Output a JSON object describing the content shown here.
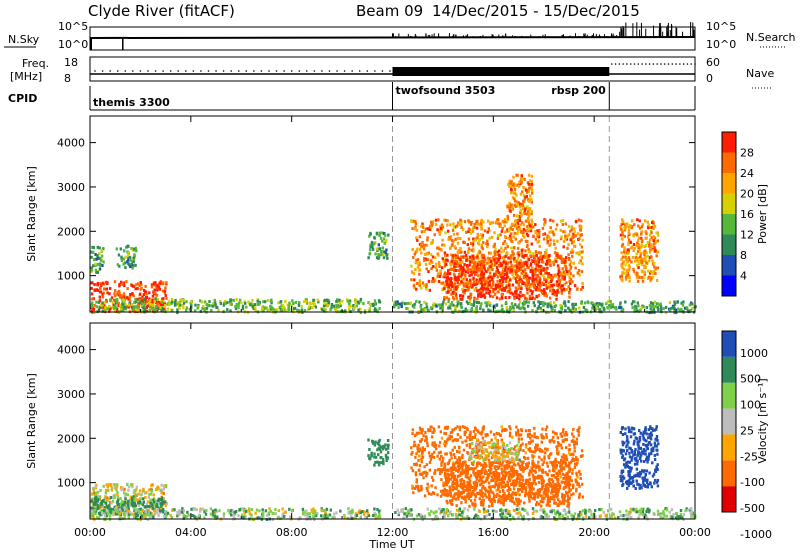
{
  "header": {
    "station": "Clyde River (fitACF)",
    "beam": "Beam 09",
    "date_range": "14/Dec/2015 - 15/Dec/2015"
  },
  "strip_sky": {
    "left_label": "N.Sky",
    "left_ticks": [
      "10^5",
      "10^0"
    ],
    "right_ticks": [
      "10^5",
      "10^0"
    ],
    "right_label": "N.Search",
    "right_legend_line": "dotted"
  },
  "strip_freq": {
    "left_label_top": "Freq.",
    "left_label_unit": "[MHz]",
    "left_ticks": [
      "18",
      "8"
    ],
    "right_ticks": [
      "60",
      "0"
    ],
    "right_label": "Nave",
    "right_legend_line": "dotted"
  },
  "cpid": {
    "label": "CPID",
    "programs": [
      {
        "name": "themis 3300",
        "start_hour": 0,
        "end_hour": 12
      },
      {
        "name": "twofsound 3503",
        "start_hour": 12,
        "end_hour": 20.6
      },
      {
        "name": "rbsp 200",
        "start_hour": 20.6,
        "end_hour": 24
      }
    ]
  },
  "colors": {
    "power": [
      "#0000ff",
      "#1f4fb4",
      "#2e8b57",
      "#55b83a",
      "#d6d000",
      "#ffa500",
      "#ff6a00",
      "#ff1e00"
    ],
    "velocity": [
      "#e00000",
      "#ff6a00",
      "#ffa500",
      "#bdbdbd",
      "#7fd14a",
      "#2e8b57",
      "#1f4fb4"
    ]
  },
  "chart_data": [
    {
      "type": "heatmap",
      "name": "power",
      "ylabel": "Slant Range [km]",
      "ylim": [
        180,
        4600
      ],
      "y_ticks": [
        1000,
        2000,
        3000,
        4000
      ],
      "xlim": [
        0,
        24
      ],
      "colorbar_label": "Power [dB]",
      "colorbar_ticks": [
        "4",
        "8",
        "12",
        "16",
        "20",
        "24",
        "28"
      ],
      "colorbar_range": [
        0,
        32
      ],
      "dashed_hours": [
        12,
        20.6
      ],
      "regions": [
        {
          "t0": 0.0,
          "t1": 3.0,
          "r0": 200,
          "r1": 900,
          "level": 29
        },
        {
          "t0": 0.0,
          "t1": 0.5,
          "r0": 1100,
          "r1": 1700,
          "level": 12
        },
        {
          "t0": 1.0,
          "t1": 1.8,
          "r0": 1200,
          "r1": 1700,
          "level": 12
        },
        {
          "t0": 0.0,
          "t1": 11.5,
          "r0": 200,
          "r1": 500,
          "level": 14
        },
        {
          "t0": 11.0,
          "t1": 11.8,
          "r0": 1400,
          "r1": 2000,
          "level": 12
        },
        {
          "t0": 12.7,
          "t1": 19.5,
          "r0": 700,
          "r1": 2300,
          "level": 24
        },
        {
          "t0": 14.0,
          "t1": 19.0,
          "r0": 500,
          "r1": 1500,
          "level": 29
        },
        {
          "t0": 16.5,
          "t1": 17.5,
          "r0": 2000,
          "r1": 3300,
          "level": 24
        },
        {
          "t0": 21.0,
          "t1": 22.5,
          "r0": 900,
          "r1": 2300,
          "level": 24
        },
        {
          "t0": 12.0,
          "t1": 24.0,
          "r0": 200,
          "r1": 450,
          "level": 12
        }
      ]
    },
    {
      "type": "heatmap",
      "name": "velocity",
      "ylabel": "Slant Range [km]",
      "xlabel": "Time UT",
      "ylim": [
        180,
        4600
      ],
      "y_ticks": [
        1000,
        2000,
        3000,
        4000
      ],
      "xlim": [
        0,
        24
      ],
      "x_tick_labels": [
        "00:00",
        "04:00",
        "08:00",
        "12:00",
        "16:00",
        "20:00",
        "00:00"
      ],
      "colorbar_label": "Velocity [m s⁻¹]",
      "colorbar_ticks": [
        "1000",
        "500",
        "100",
        "25",
        "-25",
        "-100",
        "-500",
        "-1000"
      ],
      "dashed_hours": [
        12,
        20.6
      ],
      "regions": [
        {
          "t0": 0.0,
          "t1": 3.0,
          "r0": 300,
          "r1": 1000,
          "vel": 0
        },
        {
          "t0": 0.0,
          "t1": 3.0,
          "r0": 300,
          "r1": 700,
          "vel": 200
        },
        {
          "t0": 0.0,
          "t1": 11.5,
          "r0": 200,
          "r1": 450,
          "vel": 50
        },
        {
          "t0": 11.0,
          "t1": 11.8,
          "r0": 1400,
          "r1": 2000,
          "vel": 300
        },
        {
          "t0": 12.7,
          "t1": 19.5,
          "r0": 700,
          "r1": 2300,
          "vel": -200
        },
        {
          "t0": 14.0,
          "t1": 19.0,
          "r0": 500,
          "r1": 1500,
          "vel": -300
        },
        {
          "t0": 15.0,
          "t1": 17.0,
          "r0": 1500,
          "r1": 2000,
          "vel": 0
        },
        {
          "t0": 21.0,
          "t1": 22.5,
          "r0": 900,
          "r1": 2300,
          "vel": 700
        },
        {
          "t0": 12.0,
          "t1": 24.0,
          "r0": 200,
          "r1": 450,
          "vel": 60
        }
      ]
    }
  ]
}
